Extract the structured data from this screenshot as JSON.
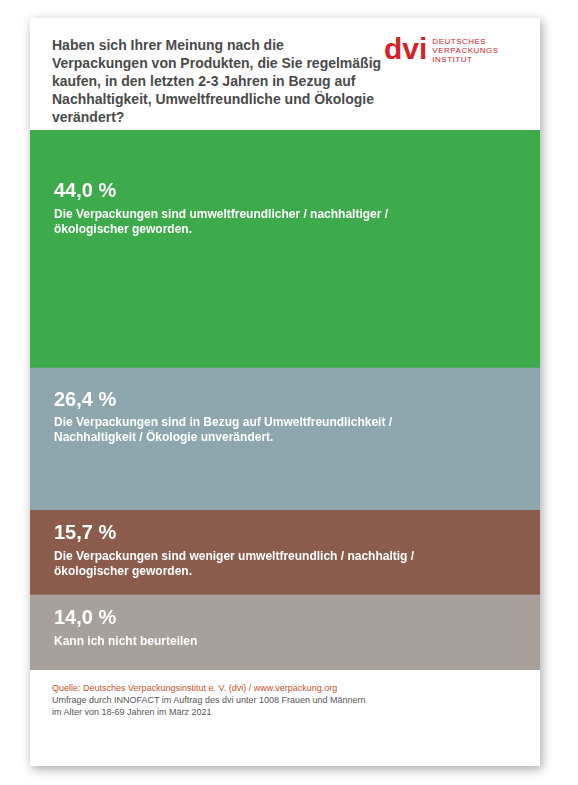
{
  "chart_data": {
    "type": "bar",
    "title": "Haben sich Ihrer Meinung nach die Verpackungen von Produkten, die Sie regelmäßig kaufen, in den letzten 2-3 Jahren in Bezug auf Nachhaltigkeit, Umweltfreundliche und Ökologie verändert?",
    "categories": [
      null
    ],
    "series": [
      {
        "name": "Die Verpackungen sind umweltfreundlicher / nachhaltiger / ökologischer geworden.",
        "color": "#3daa4c",
        "values": [
          44.0
        ],
        "value_labels": [
          "44,0 %"
        ]
      },
      {
        "name": "Die Verpackungen sind in Bezug auf Umweltfreundlichkeit / Nachhaltigkeit / Ökologie unverändert.",
        "color": "#8ea6ad",
        "values": [
          26.4
        ],
        "value_labels": [
          "26,4 %"
        ]
      },
      {
        "name": "Die Verpackungen sind weniger umweltfreundlich / nachhaltig / ökologischer geworden.",
        "color": "#8b5b4b",
        "values": [
          15.7
        ],
        "value_labels": [
          "15,7 %"
        ]
      },
      {
        "name": "Kann ich nicht beurteilen",
        "color": "#a8a09a",
        "values": [
          14.0
        ],
        "value_labels": [
          "14,0 %"
        ]
      }
    ],
    "ylim": [
      0,
      100.1
    ],
    "stacked": true,
    "data_labels": true,
    "tick_labels": false,
    "grid": false
  },
  "logo": {
    "mark": "dvi",
    "text": "DEUTSCHES VERPACKUNGS INSTITUT"
  },
  "source": [
    "Quelle: Deutsches Verpackungsinstitut e. V. (dvi) / www.verpackung.org",
    "Umfrage durch INNOFACT im Auftrag des dvi unter 1008 Frauen und Männern",
    "im Alter von 18-69 Jahren im März 2021"
  ]
}
